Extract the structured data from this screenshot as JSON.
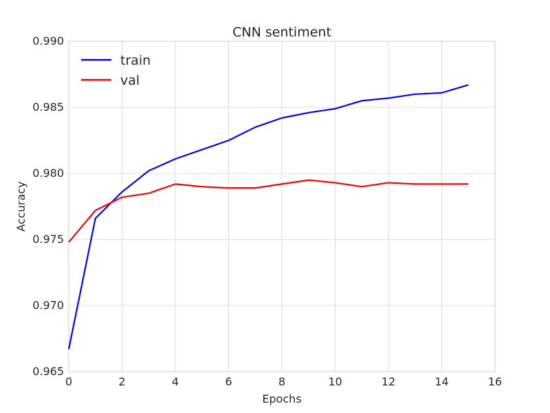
{
  "chart_data": {
    "type": "line",
    "title": "CNN sentiment",
    "xlabel": "Epochs",
    "ylabel": "Accuracy",
    "xlim": [
      0,
      16
    ],
    "ylim": [
      0.965,
      0.99
    ],
    "xticks": [
      0,
      2,
      4,
      6,
      8,
      10,
      12,
      14,
      16
    ],
    "xtick_labels": [
      "0",
      "2",
      "4",
      "6",
      "8",
      "10",
      "12",
      "14",
      "16"
    ],
    "yticks": [
      0.965,
      0.97,
      0.975,
      0.98,
      0.985,
      0.99
    ],
    "ytick_labels": [
      "0.965",
      "0.970",
      "0.975",
      "0.980",
      "0.985",
      "0.990"
    ],
    "grid": true,
    "legend_position": "top-left",
    "x": [
      0,
      1,
      2,
      3,
      4,
      5,
      6,
      7,
      8,
      9,
      10,
      11,
      12,
      13,
      14,
      15
    ],
    "series": [
      {
        "name": "train",
        "color": "#0000ff",
        "values": [
          0.9667,
          0.9766,
          0.9786,
          0.9802,
          0.9811,
          0.9818,
          0.9825,
          0.9835,
          0.9842,
          0.9846,
          0.9849,
          0.9855,
          0.9857,
          0.986,
          0.9861,
          0.9867
        ]
      },
      {
        "name": "val",
        "color": "#ff0000",
        "values": [
          0.9748,
          0.9772,
          0.9782,
          0.9785,
          0.9792,
          0.979,
          0.9789,
          0.9789,
          0.9792,
          0.9795,
          0.9793,
          0.979,
          0.9793,
          0.9792,
          0.9792,
          0.9792
        ]
      }
    ]
  }
}
